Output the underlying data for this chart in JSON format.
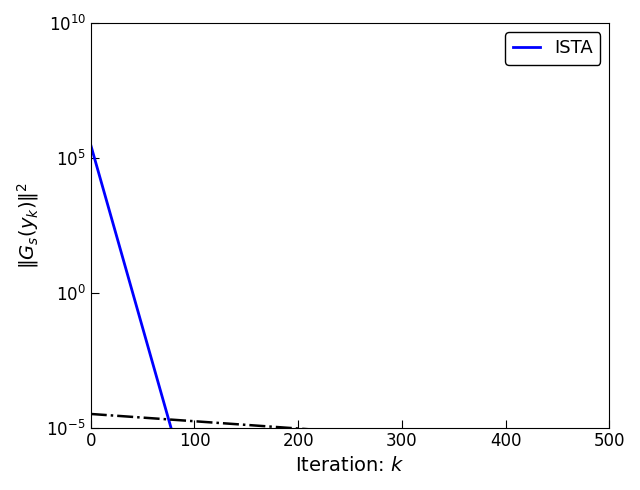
{
  "title": "",
  "xlabel": "Iteration: $k$",
  "ylabel": "$\\|G_s(y_k)\\|^2$",
  "xlim": [
    0,
    500
  ],
  "ylim_log": [
    -5,
    10
  ],
  "xticks": [
    0,
    100,
    200,
    300,
    400,
    500
  ],
  "ista_color": "#0000FF",
  "ista_linewidth": 2.0,
  "ista_label": "ISTA",
  "ref_color": "#000000",
  "ref_linewidth": 1.8,
  "ref_linestyle": "-.",
  "ista_C": 300000.0,
  "ista_r": 0.732,
  "ref_C": 3.2e-05,
  "ref_r": 0.9938,
  "n_points": 501,
  "legend_loc": "upper right",
  "background_color": "#ffffff",
  "axis_label_fontsize": 14,
  "tick_fontsize": 12,
  "legend_fontsize": 13,
  "ytick_powers": [
    -5,
    0,
    5,
    10
  ]
}
